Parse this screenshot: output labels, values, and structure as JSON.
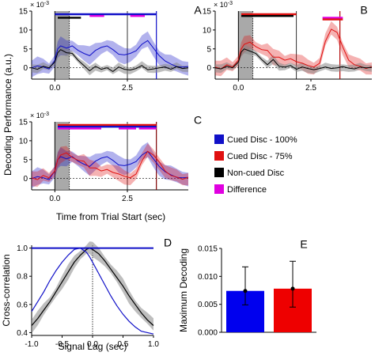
{
  "figure": {
    "ylabel_main": "Decoding Performance (a.u.)",
    "xlabel_main": "Time from Trial Start (sec)",
    "exponent": "× 10",
    "exponent_power": "-3",
    "legend": [
      {
        "label": "Cued Disc - 100%",
        "color": "#1010c8"
      },
      {
        "label": "Cued Disc - 75%",
        "color": "#e01010"
      },
      {
        "label": "Non-cued Disc",
        "color": "#000000"
      },
      {
        "label": "Difference",
        "color": "#e000e0"
      }
    ]
  },
  "chart_data": [
    {
      "panel": "A",
      "type": "line",
      "xlim": [
        -0.8,
        4.6
      ],
      "ylim": [
        -3,
        15
      ],
      "xticks": [
        0,
        2.5
      ],
      "xtick_labels": [
        "0.0",
        "2.5"
      ],
      "yticks": [
        0,
        5,
        10,
        15
      ],
      "shaded_interval": [
        0,
        0.5
      ],
      "vlines": [
        0.5,
        2.5,
        3.5
      ],
      "series": [
        {
          "color": "#1010c8",
          "x": [
            -0.8,
            -0.6,
            -0.4,
            -0.2,
            0,
            0.1,
            0.2,
            0.4,
            0.6,
            0.8,
            1.0,
            1.2,
            1.4,
            1.6,
            1.8,
            2.0,
            2.2,
            2.4,
            2.6,
            2.8,
            3.0,
            3.2,
            3.4,
            3.6,
            3.8,
            4.0,
            4.2,
            4.4,
            4.6
          ],
          "y": [
            0,
            0.5,
            0.2,
            -0.3,
            2,
            5,
            5.8,
            5.2,
            5.8,
            4.6,
            3.8,
            3.2,
            4.6,
            5.4,
            5.8,
            4.8,
            3.6,
            3.4,
            3.8,
            4.5,
            6.2,
            7.2,
            5.2,
            3.2,
            1.8,
            1.0,
            0.3,
            0.2,
            0.3
          ],
          "band": 2.5
        },
        {
          "color": "#000000",
          "x": [
            -0.8,
            -0.6,
            -0.4,
            -0.2,
            0,
            0.1,
            0.2,
            0.4,
            0.6,
            0.8,
            1.0,
            1.2,
            1.4,
            1.6,
            1.8,
            2.0,
            2.2,
            2.4,
            2.6,
            2.8,
            3.0,
            3.2,
            3.4,
            3.6,
            3.8,
            4.0,
            4.2,
            4.4,
            4.6
          ],
          "y": [
            0,
            -0.4,
            0.4,
            0,
            1.5,
            4,
            4.8,
            4,
            3.8,
            2,
            0.6,
            -0.8,
            0.4,
            -0.4,
            0,
            -1,
            0.2,
            -0.4,
            -0.6,
            -0.2,
            0.6,
            -0.5,
            -0.3,
            0,
            0.2,
            -0.4,
            0.3,
            -0.2,
            0
          ],
          "band": 1.2
        }
      ],
      "significance_bars": [
        {
          "color": "#1010c8",
          "segments": [
            [
              0,
              3.5
            ]
          ]
        },
        {
          "color": "#e000e0",
          "segments": [
            [
              1.2,
              1.7
            ],
            [
              2.6,
              3.1
            ]
          ]
        },
        {
          "color": "#000000",
          "segments": [
            [
              0.1,
              0.9
            ]
          ]
        }
      ]
    },
    {
      "panel": "B",
      "type": "line",
      "xlim": [
        -0.8,
        4.6
      ],
      "ylim": [
        -3,
        15
      ],
      "xticks": [
        0,
        2.5
      ],
      "xtick_labels": [
        "0.0",
        "2.5"
      ],
      "yticks": [
        0,
        5,
        10,
        15
      ],
      "shaded_interval": [
        0,
        0.5
      ],
      "vlines": [
        0.5,
        2.0,
        3.5
      ],
      "series": [
        {
          "color": "#e01010",
          "x": [
            -0.8,
            -0.6,
            -0.4,
            -0.2,
            0,
            0.1,
            0.2,
            0.4,
            0.6,
            0.8,
            1.0,
            1.2,
            1.4,
            1.6,
            1.8,
            2.0,
            2.2,
            2.4,
            2.6,
            2.8,
            3.0,
            3.2,
            3.4,
            3.6,
            3.8,
            4.0,
            4.2,
            4.4,
            4.6
          ],
          "y": [
            0.2,
            -0.3,
            0.8,
            0.2,
            2,
            5,
            6.2,
            6.8,
            5.6,
            4.8,
            4.6,
            2.8,
            2.8,
            2,
            2.4,
            1.6,
            1.2,
            0.6,
            0.2,
            1.2,
            7,
            10.2,
            9.4,
            5.5,
            2,
            0.8,
            0.4,
            -0.2,
            0.3
          ],
          "band": 2.2
        },
        {
          "color": "#000000",
          "x": [
            -0.8,
            -0.6,
            -0.4,
            -0.2,
            0,
            0.1,
            0.2,
            0.4,
            0.6,
            0.8,
            1.0,
            1.2,
            1.4,
            1.6,
            1.8,
            2.0,
            2.2,
            2.4,
            2.6,
            2.8,
            3.0,
            3.2,
            3.4,
            3.6,
            3.8,
            4.0,
            4.2,
            4.4,
            4.6
          ],
          "y": [
            0,
            -0.3,
            0.4,
            0,
            1.5,
            4.2,
            5,
            4.4,
            3.8,
            2.2,
            0.8,
            2.2,
            0.4,
            0.2,
            0.6,
            -0.4,
            0.2,
            -0.2,
            -0.5,
            -0.2,
            0.2,
            -0.2,
            0,
            0.3,
            -0.1,
            -0.3,
            0.2,
            0,
            0.1
          ],
          "band": 1.2
        }
      ],
      "significance_bars": [
        {
          "color": "#e01010",
          "segments": [
            [
              0.1,
              2.0
            ]
          ]
        },
        {
          "color": "#000000",
          "segments": [
            [
              0.1,
              1.9
            ]
          ]
        },
        {
          "color": "#e000e0",
          "segments": [
            [
              2.9,
              3.6
            ]
          ]
        },
        {
          "color": "#e01010",
          "segments": [
            [
              2.9,
              3.6
            ]
          ]
        }
      ]
    },
    {
      "panel": "C",
      "type": "line",
      "xlim": [
        -0.8,
        4.6
      ],
      "ylim": [
        -3,
        15
      ],
      "xticks": [
        0,
        2.5
      ],
      "xtick_labels": [
        "0.0",
        "2.5"
      ],
      "yticks": [
        0,
        5,
        10,
        15
      ],
      "shaded_interval": [
        0,
        0.5
      ],
      "vlines": [
        0.5,
        2.5,
        3.5
      ],
      "series": [
        {
          "color": "#1010c8",
          "x": [
            -0.8,
            -0.6,
            -0.4,
            -0.2,
            0,
            0.1,
            0.2,
            0.4,
            0.6,
            0.8,
            1.0,
            1.2,
            1.4,
            1.6,
            1.8,
            2.0,
            2.2,
            2.4,
            2.6,
            2.8,
            3.0,
            3.2,
            3.4,
            3.6,
            3.8,
            4.0,
            4.2,
            4.4,
            4.6
          ],
          "y": [
            0,
            0.5,
            0.2,
            -0.3,
            2,
            5,
            5.8,
            5.2,
            5.8,
            4.6,
            3.8,
            3.2,
            4.6,
            5.4,
            5.8,
            4.8,
            3.6,
            3.4,
            3.8,
            4.5,
            6.2,
            7.2,
            5.2,
            3.2,
            1.8,
            1.0,
            0.3,
            0.2,
            0.3
          ],
          "band": 2.5
        },
        {
          "color": "#e01010",
          "x": [
            -0.8,
            -0.6,
            -0.4,
            -0.2,
            0,
            0.1,
            0.2,
            0.4,
            0.6,
            0.8,
            1.0,
            1.2,
            1.4,
            1.6,
            1.8,
            2.0,
            2.2,
            2.4,
            2.6,
            2.8,
            3.0,
            3.2,
            3.4,
            3.6,
            3.8,
            4.0,
            4.2,
            4.4,
            4.6
          ],
          "y": [
            0.2,
            -0.3,
            0.8,
            0.2,
            2,
            5,
            6.2,
            6.8,
            5.6,
            4.8,
            4.6,
            2.8,
            2.8,
            2,
            2.4,
            1.6,
            1.2,
            0.6,
            0.2,
            1.2,
            4.6,
            7.2,
            6.2,
            4.4,
            2,
            0.8,
            0.4,
            -0.2,
            0.3
          ],
          "band": 2.2
        }
      ],
      "significance_bars": [
        {
          "color": "#e01010",
          "segments": [
            [
              0.1,
              3.5
            ]
          ]
        },
        {
          "color": "#1010c8",
          "segments": [
            [
              0.1,
              3.5
            ]
          ]
        },
        {
          "color": "#e000e0",
          "segments": [
            [
              0.1,
              1.6
            ],
            [
              2.2,
              2.8
            ],
            [
              2.9,
              3.5
            ]
          ]
        }
      ]
    },
    {
      "panel": "D",
      "type": "line",
      "xlabel": "Signal Lag (sec)",
      "ylabel": "Cross-correlation",
      "xlim": [
        -1,
        1
      ],
      "ylim": [
        0.38,
        1.02
      ],
      "xticks": [
        -1,
        -0.5,
        0,
        0.5,
        1
      ],
      "xtick_labels": [
        "-1.0",
        "-0.5",
        "0.0",
        "0.5",
        "1.0"
      ],
      "yticks": [
        0.4,
        0.6,
        0.8,
        1.0
      ],
      "ytick_labels": [
        "0.4",
        "0.6",
        "0.8",
        "1.0"
      ],
      "vlines": [
        0
      ],
      "hline": 1.0,
      "series": [
        {
          "color": "#000000",
          "x": [
            -1,
            -0.9,
            -0.8,
            -0.7,
            -0.6,
            -0.5,
            -0.4,
            -0.3,
            -0.2,
            -0.1,
            -0.05,
            0,
            0.1,
            0.2,
            0.3,
            0.4,
            0.5,
            0.6,
            0.7,
            0.8,
            0.9,
            1
          ],
          "y": [
            0.45,
            0.5,
            0.56,
            0.62,
            0.69,
            0.76,
            0.83,
            0.9,
            0.95,
            0.99,
            1.0,
            0.99,
            0.96,
            0.91,
            0.85,
            0.79,
            0.73,
            0.66,
            0.6,
            0.54,
            0.49,
            0.45
          ],
          "band": 0.055
        },
        {
          "color": "#1010c8",
          "x": [
            -1,
            -0.9,
            -0.8,
            -0.7,
            -0.6,
            -0.5,
            -0.4,
            -0.3,
            -0.2,
            -0.1,
            -0.05,
            0,
            0.1,
            0.2,
            0.3,
            0.4,
            0.5,
            0.6,
            0.7,
            0.8,
            0.9,
            1
          ],
          "y": [
            0.55,
            0.62,
            0.69,
            0.77,
            0.84,
            0.9,
            0.95,
            0.99,
            1.0,
            0.97,
            0.94,
            0.9,
            0.82,
            0.74,
            0.66,
            0.59,
            0.53,
            0.48,
            0.44,
            0.41,
            0.4,
            0.39
          ]
        }
      ]
    },
    {
      "panel": "E",
      "type": "bar",
      "ylabel": "Maximum Decoding",
      "ylim": [
        0,
        0.015
      ],
      "yticks": [
        0,
        0.005,
        0.01,
        0.015
      ],
      "ytick_labels": [
        "0.000",
        "0.005",
        "0.010",
        "0.015"
      ],
      "bars": [
        {
          "color": "#0000ee",
          "value": 0.0074,
          "err_low": 0.0049,
          "err_high": 0.0117
        },
        {
          "color": "#ee0000",
          "value": 0.0078,
          "err_low": 0.0045,
          "err_high": 0.0127
        }
      ]
    }
  ]
}
